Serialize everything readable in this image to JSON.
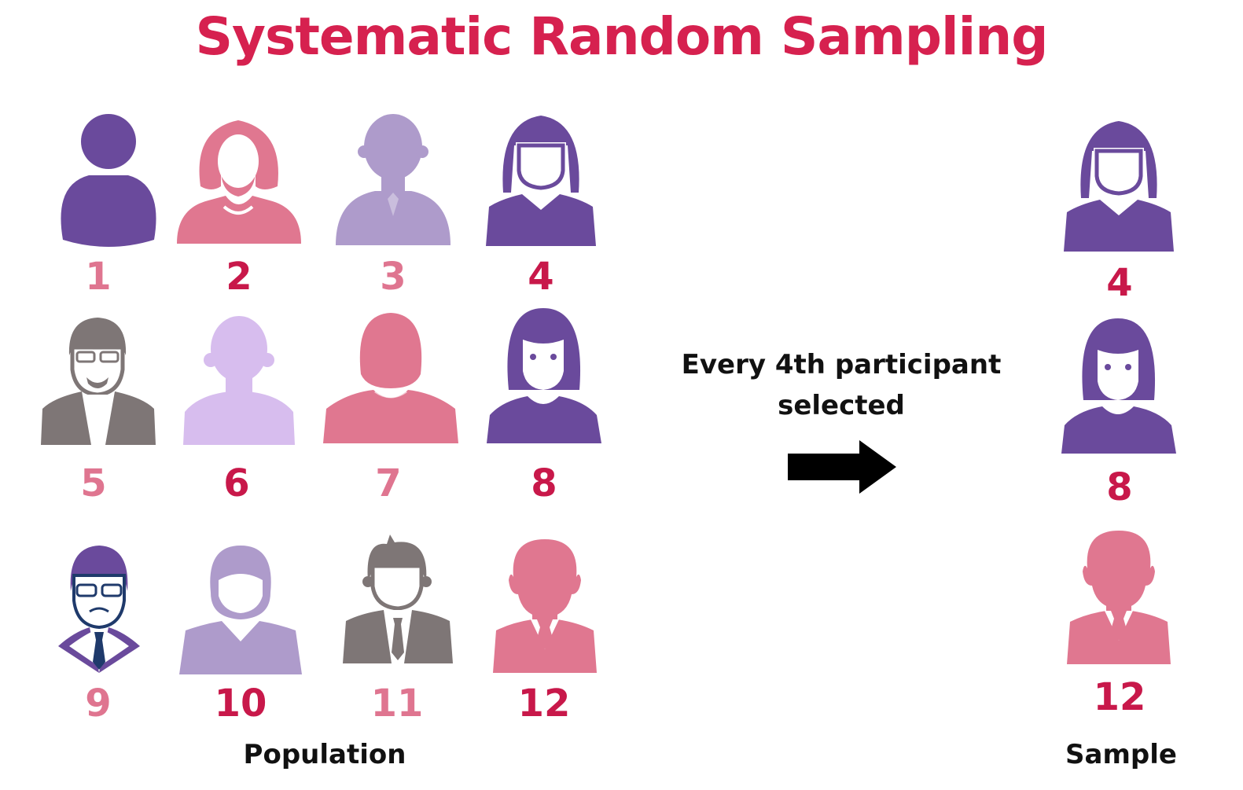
{
  "title": "Systematic Random Sampling",
  "colors": {
    "title": "#d6214f",
    "number_dark": "#c8184a",
    "number_light": "#df7590",
    "purple": "#6a4a9c",
    "pink": "#e07790",
    "lavender": "#ae9bcb",
    "light_lavender": "#d7bdee",
    "gray": "#7e7676",
    "navy": "#1f3a6b",
    "arrow": "#000000"
  },
  "population": {
    "label": "Population",
    "members": [
      {
        "number": "1",
        "icon": "person-generic-icon",
        "color": "purple",
        "number_color": "number_light"
      },
      {
        "number": "2",
        "icon": "woman-bob-hair-icon",
        "color": "pink",
        "number_color": "number_dark"
      },
      {
        "number": "3",
        "icon": "man-bald-tie-icon",
        "color": "lavender",
        "number_color": "number_light"
      },
      {
        "number": "4",
        "icon": "woman-long-hair-icon",
        "color": "purple",
        "number_color": "number_dark"
      },
      {
        "number": "5",
        "icon": "man-glasses-suit-icon",
        "color": "gray",
        "number_color": "number_light"
      },
      {
        "number": "6",
        "icon": "person-silhouette-icon",
        "color": "light_lavender",
        "number_color": "number_dark"
      },
      {
        "number": "7",
        "icon": "man-plain-icon",
        "color": "pink",
        "number_color": "number_light"
      },
      {
        "number": "8",
        "icon": "woman-bangs-icon",
        "color": "purple",
        "number_color": "number_dark"
      },
      {
        "number": "9",
        "icon": "businessman-glasses-icon",
        "color": "purple",
        "number_color": "number_light"
      },
      {
        "number": "10",
        "icon": "man-vneck-icon",
        "color": "lavender",
        "number_color": "number_dark"
      },
      {
        "number": "11",
        "icon": "man-spiky-hair-suit-icon",
        "color": "gray",
        "number_color": "number_light"
      },
      {
        "number": "12",
        "icon": "man-suit-tie-icon",
        "color": "pink",
        "number_color": "number_dark"
      }
    ]
  },
  "selection_rule": {
    "line1": "Every 4th participant",
    "line2": "selected",
    "icon": "right-arrow-icon"
  },
  "sample": {
    "label": "Sample",
    "members": [
      {
        "number": "4",
        "icon": "woman-long-hair-icon",
        "color": "purple",
        "number_color": "number_dark"
      },
      {
        "number": "8",
        "icon": "woman-bangs-icon",
        "color": "purple",
        "number_color": "number_dark"
      },
      {
        "number": "12",
        "icon": "man-suit-tie-icon",
        "color": "pink",
        "number_color": "number_dark"
      }
    ]
  }
}
